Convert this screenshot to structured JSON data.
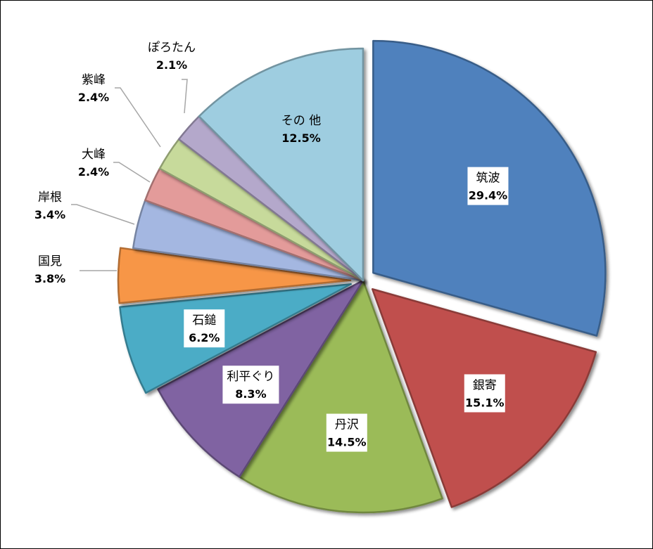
{
  "chart_data": {
    "type": "pie",
    "title": "",
    "slices": [
      {
        "name": "筑波",
        "value": 29.4,
        "label": "29.4%",
        "color": "#4f81bd",
        "exploded": true,
        "label_box": true
      },
      {
        "name": "銀寄",
        "value": 15.1,
        "label": "15.1%",
        "color": "#c0504d",
        "exploded": true,
        "label_box": true
      },
      {
        "name": "丹沢",
        "value": 14.5,
        "label": "14.5%",
        "color": "#9bbb59",
        "exploded": false,
        "label_box": true
      },
      {
        "name": "利平ぐり",
        "value": 8.3,
        "label": "8.3%",
        "color": "#8064a2",
        "exploded": false,
        "label_box": true
      },
      {
        "name": "石鎚",
        "value": 6.2,
        "label": "6.2%",
        "color": "#4bacc6",
        "exploded": true,
        "label_box": true
      },
      {
        "name": "国見",
        "value": 3.8,
        "label": "3.8%",
        "color": "#f79646",
        "exploded": true,
        "label_box": false
      },
      {
        "name": "岸根",
        "value": 3.4,
        "label": "3.4%",
        "color": "#a4b7e1",
        "exploded": false,
        "label_box": false
      },
      {
        "name": "大峰",
        "value": 2.4,
        "label": "2.4%",
        "color": "#e39b9a",
        "exploded": false,
        "label_box": false
      },
      {
        "name": "紫峰",
        "value": 2.4,
        "label": "2.4%",
        "color": "#c7da9b",
        "exploded": false,
        "label_box": false
      },
      {
        "name": "ぽろたん",
        "value": 2.1,
        "label": "2.1%",
        "color": "#b4a8cb",
        "exploded": false,
        "label_box": false
      },
      {
        "name": "その 他",
        "value": 12.5,
        "label": "12.5%",
        "color": "#9ecde0",
        "exploded": false,
        "label_box": false
      }
    ],
    "start_angle_deg": 0,
    "direction": "clockwise",
    "legend": "none",
    "leader_line_color": "#a6a6a6"
  }
}
